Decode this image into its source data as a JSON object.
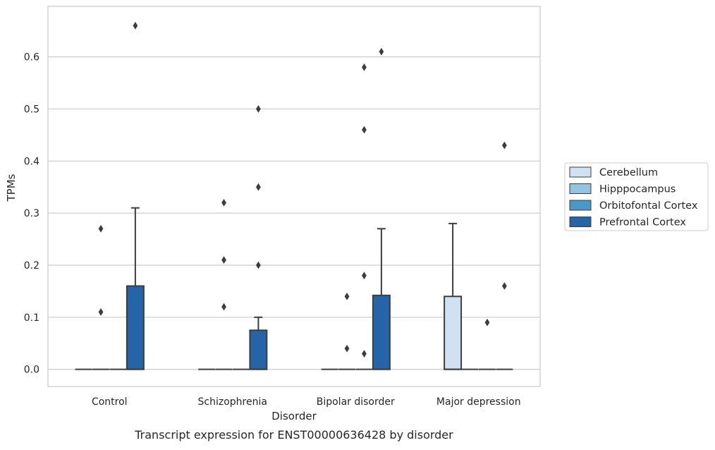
{
  "chart_data": {
    "type": "box",
    "xlabel": "Disorder",
    "ylabel": "TPMs",
    "caption": "Transcript expression for ENST00000636428 by disorder",
    "ylim": [
      -0.033,
      0.697
    ],
    "yticks": [
      0.0,
      0.1,
      0.2,
      0.3,
      0.4,
      0.5,
      0.6
    ],
    "ytick_labels": [
      "0.0",
      "0.1",
      "0.2",
      "0.3",
      "0.4",
      "0.5",
      "0.6"
    ],
    "grid": "horizontal",
    "legend_position": "right",
    "categories": [
      "Control",
      "Schizophrenia",
      "Bipolar disorder",
      "Major depression"
    ],
    "series": [
      {
        "name": "Cerebellum",
        "color": "#d0e1f2",
        "boxes": [
          {
            "q1": 0,
            "median": 0,
            "q3": 0,
            "whisker_low": 0,
            "whisker_high": 0,
            "outliers": []
          },
          {
            "q1": 0,
            "median": 0,
            "q3": 0,
            "whisker_low": 0,
            "whisker_high": 0,
            "outliers": []
          },
          {
            "q1": 0,
            "median": 0,
            "q3": 0,
            "whisker_low": 0,
            "whisker_high": 0,
            "outliers": []
          },
          {
            "q1": 0,
            "median": 0,
            "q3": 0.14,
            "whisker_low": 0,
            "whisker_high": 0.28,
            "outliers": []
          }
        ]
      },
      {
        "name": "Hipppocampus",
        "color": "#94c4df",
        "boxes": [
          {
            "q1": 0,
            "median": 0,
            "q3": 0,
            "whisker_low": 0,
            "whisker_high": 0,
            "outliers": [
              0.11,
              0.27
            ]
          },
          {
            "q1": 0,
            "median": 0,
            "q3": 0,
            "whisker_low": 0,
            "whisker_high": 0,
            "outliers": [
              0.12,
              0.21,
              0.32
            ]
          },
          {
            "q1": 0,
            "median": 0,
            "q3": 0,
            "whisker_low": 0,
            "whisker_high": 0,
            "outliers": [
              0.04,
              0.14
            ]
          },
          {
            "q1": 0,
            "median": 0,
            "q3": 0,
            "whisker_low": 0,
            "whisker_high": 0,
            "outliers": []
          }
        ]
      },
      {
        "name": "Orbitofontal Cortex",
        "color": "#4a98c9",
        "boxes": [
          {
            "q1": 0,
            "median": 0,
            "q3": 0,
            "whisker_low": 0,
            "whisker_high": 0,
            "outliers": []
          },
          {
            "q1": 0,
            "median": 0,
            "q3": 0,
            "whisker_low": 0,
            "whisker_high": 0,
            "outliers": []
          },
          {
            "q1": 0,
            "median": 0,
            "q3": 0,
            "whisker_low": 0,
            "whisker_high": 0,
            "outliers": [
              0.03,
              0.18,
              0.46,
              0.58
            ]
          },
          {
            "q1": 0,
            "median": 0,
            "q3": 0,
            "whisker_low": 0,
            "whisker_high": 0,
            "outliers": [
              0.09
            ]
          }
        ]
      },
      {
        "name": "Prefrontal Cortex",
        "color": "#2464a7",
        "boxes": [
          {
            "q1": 0,
            "median": 0,
            "q3": 0.16,
            "whisker_low": 0,
            "whisker_high": 0.31,
            "outliers": [
              0.66
            ]
          },
          {
            "q1": 0,
            "median": 0,
            "q3": 0.075,
            "whisker_low": 0,
            "whisker_high": 0.1,
            "outliers": [
              0.2,
              0.35,
              0.5
            ]
          },
          {
            "q1": 0,
            "median": 0,
            "q3": 0.142,
            "whisker_low": 0,
            "whisker_high": 0.27,
            "outliers": [
              0.61
            ]
          },
          {
            "q1": 0,
            "median": 0,
            "q3": 0,
            "whisker_low": 0,
            "whisker_high": 0,
            "outliers": [
              0.16,
              0.43
            ]
          }
        ]
      }
    ]
  }
}
